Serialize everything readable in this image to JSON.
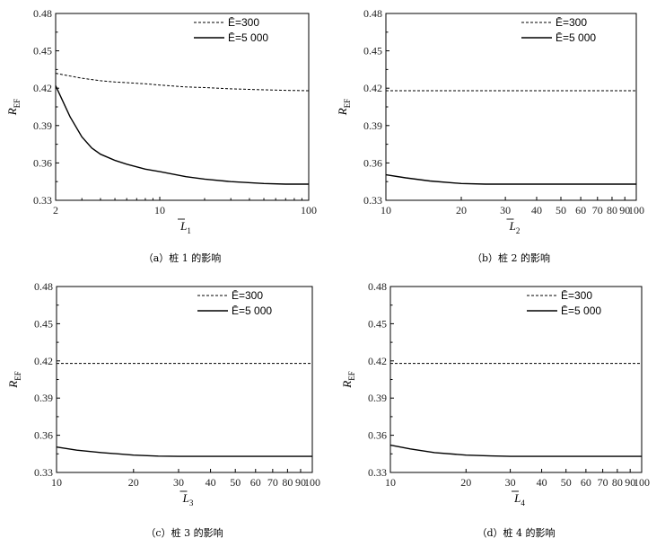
{
  "chart_data": [
    {
      "type": "line",
      "caption": "（a）桩 1 的影响",
      "xlabel_base": "L",
      "xlabel_sub": "1",
      "ylabel_base": "R",
      "ylabel_sub": "EF",
      "xscale": "log",
      "xlim": [
        2,
        100
      ],
      "ylim": [
        0.33,
        0.48
      ],
      "xticks": [
        2,
        10,
        100
      ],
      "yticks": [
        0.33,
        0.36,
        0.39,
        0.42,
        0.45,
        0.48
      ],
      "legend_position": "top-right",
      "series": [
        {
          "name": "Ē=300",
          "style": "dashed",
          "x": [
            2,
            3,
            4,
            5,
            6,
            8,
            10,
            15,
            20,
            30,
            50,
            70,
            100
          ],
          "y": [
            0.432,
            0.428,
            0.426,
            0.425,
            0.4245,
            0.4235,
            0.4225,
            0.421,
            0.4205,
            0.4195,
            0.4187,
            0.4183,
            0.418
          ]
        },
        {
          "name": "Ē=5 000",
          "style": "solid",
          "x": [
            2,
            2.5,
            3,
            3.5,
            4,
            5,
            6,
            8,
            10,
            15,
            20,
            30,
            50,
            70,
            100
          ],
          "y": [
            0.422,
            0.397,
            0.381,
            0.372,
            0.367,
            0.362,
            0.359,
            0.355,
            0.353,
            0.349,
            0.347,
            0.345,
            0.3435,
            0.343,
            0.343
          ]
        }
      ]
    },
    {
      "type": "line",
      "caption": "（b）桩 2 的影响",
      "xlabel_base": "L",
      "xlabel_sub": "2",
      "ylabel_base": "R",
      "ylabel_sub": "EF",
      "xscale": "log",
      "xlim": [
        10,
        100
      ],
      "ylim": [
        0.33,
        0.48
      ],
      "xticks": [
        10,
        20,
        30,
        40,
        50,
        60,
        70,
        80,
        90,
        100
      ],
      "yticks": [
        0.33,
        0.36,
        0.39,
        0.42,
        0.45,
        0.48
      ],
      "legend_position": "top-right",
      "series": [
        {
          "name": "Ē=300",
          "style": "dashed",
          "x": [
            10,
            100
          ],
          "y": [
            0.418,
            0.418
          ]
        },
        {
          "name": "Ē=5 000",
          "style": "solid",
          "x": [
            10,
            12,
            15,
            20,
            25,
            30,
            40,
            50,
            70,
            100
          ],
          "y": [
            0.3505,
            0.348,
            0.3455,
            0.3435,
            0.343,
            0.343,
            0.343,
            0.343,
            0.343,
            0.343
          ]
        }
      ]
    },
    {
      "type": "line",
      "caption": "（c）桩 3 的影响",
      "xlabel_base": "L",
      "xlabel_sub": "3",
      "ylabel_base": "R",
      "ylabel_sub": "EF",
      "xscale": "log",
      "xlim": [
        10,
        100
      ],
      "ylim": [
        0.33,
        0.48
      ],
      "xticks": [
        10,
        20,
        30,
        40,
        50,
        60,
        70,
        80,
        90,
        100
      ],
      "yticks": [
        0.33,
        0.36,
        0.39,
        0.42,
        0.45,
        0.48
      ],
      "legend_position": "top-right",
      "series": [
        {
          "name": "Ē=300",
          "style": "dashed",
          "x": [
            10,
            100
          ],
          "y": [
            0.418,
            0.418
          ]
        },
        {
          "name": "Ē=5 000",
          "style": "solid",
          "x": [
            10,
            12,
            15,
            20,
            25,
            30,
            40,
            50,
            70,
            100
          ],
          "y": [
            0.3505,
            0.348,
            0.346,
            0.344,
            0.3432,
            0.343,
            0.343,
            0.343,
            0.343,
            0.343
          ]
        }
      ]
    },
    {
      "type": "line",
      "caption": "（d）桩 4 的影响",
      "xlabel_base": "L",
      "xlabel_sub": "4",
      "ylabel_base": "R",
      "ylabel_sub": "EF",
      "xscale": "log",
      "xlim": [
        10,
        100
      ],
      "ylim": [
        0.33,
        0.48
      ],
      "xticks": [
        10,
        20,
        30,
        40,
        50,
        60,
        70,
        80,
        90,
        100
      ],
      "yticks": [
        0.33,
        0.36,
        0.39,
        0.42,
        0.45,
        0.48
      ],
      "legend_position": "top-right",
      "series": [
        {
          "name": "Ē=300",
          "style": "dashed",
          "x": [
            10,
            100
          ],
          "y": [
            0.418,
            0.418
          ]
        },
        {
          "name": "Ē=5 000",
          "style": "solid",
          "x": [
            10,
            12,
            15,
            20,
            25,
            30,
            40,
            50,
            70,
            100
          ],
          "y": [
            0.352,
            0.349,
            0.346,
            0.344,
            0.3433,
            0.343,
            0.343,
            0.343,
            0.343,
            0.343
          ]
        }
      ]
    }
  ]
}
